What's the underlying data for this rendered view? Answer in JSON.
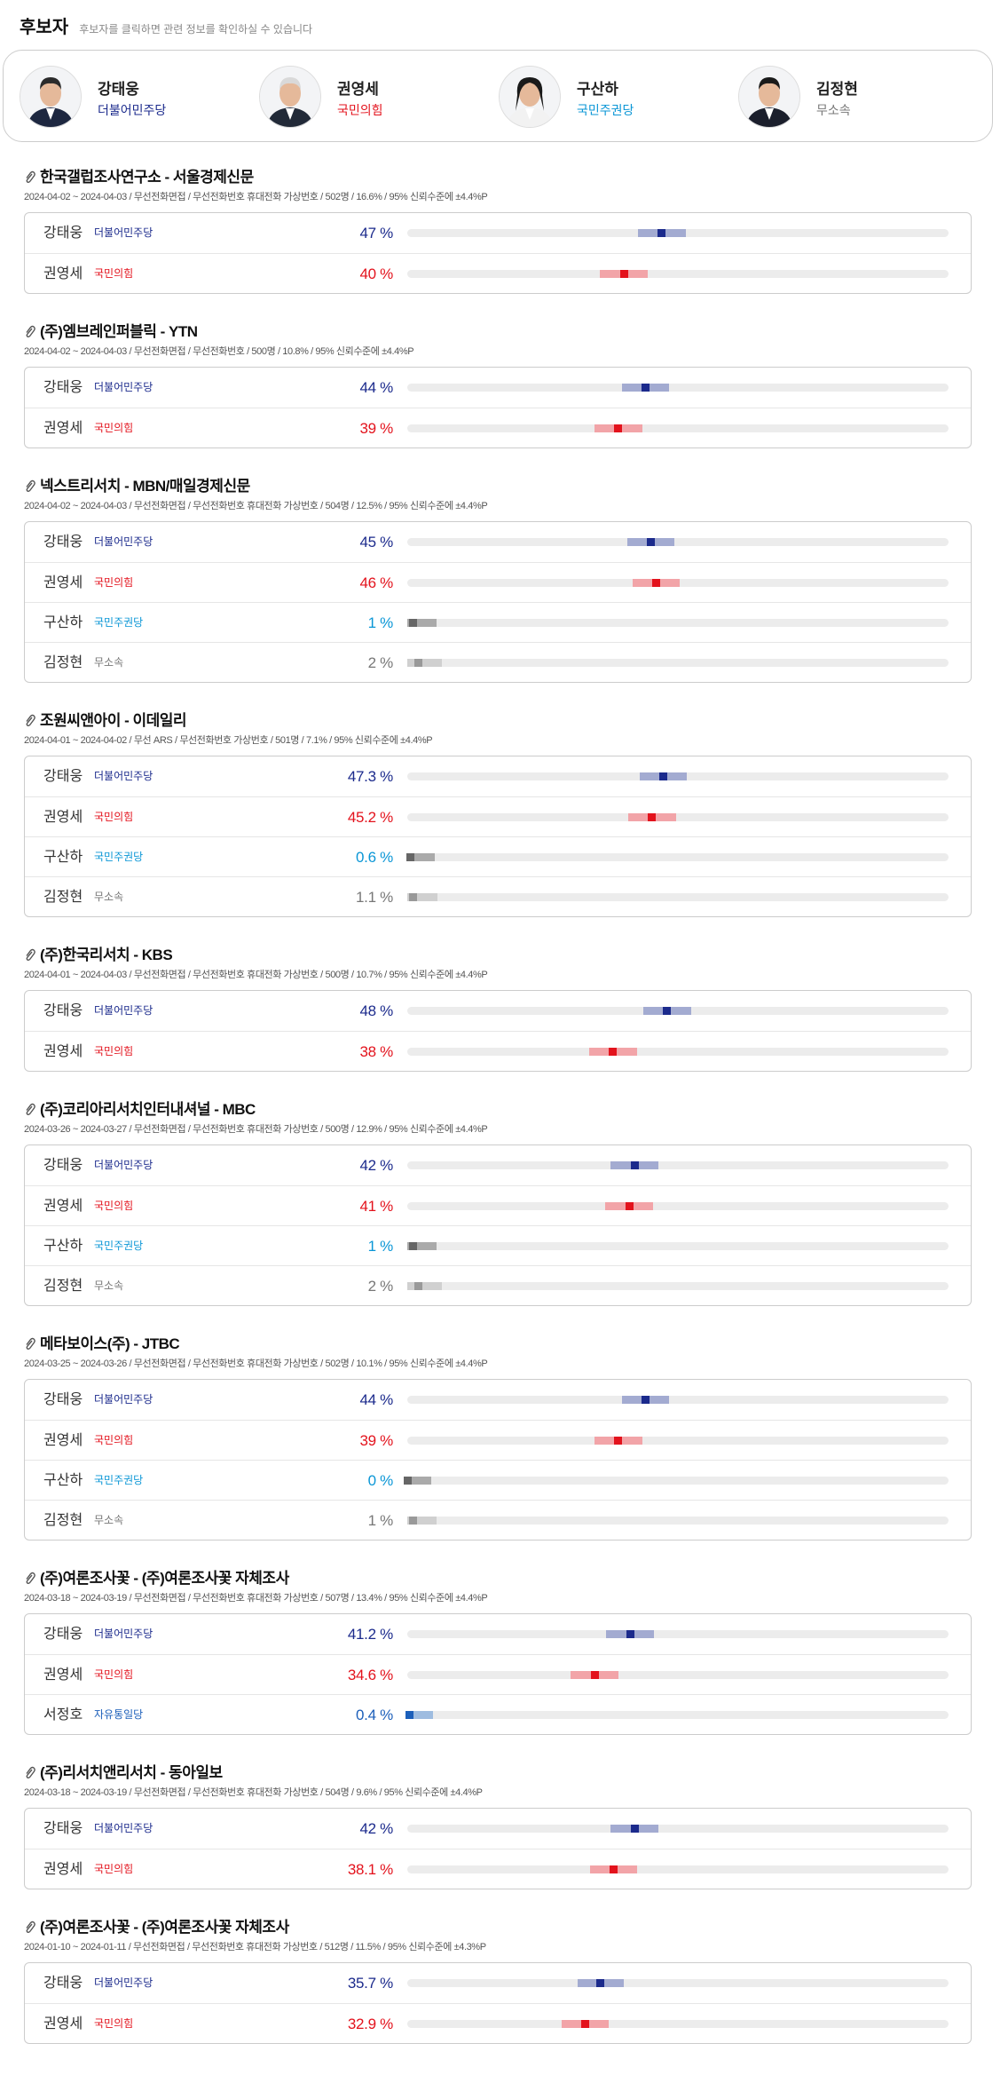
{
  "header": {
    "title": "후보자",
    "note": "후보자를 클릭하면 관련 정보를 확인하실 수 있습니다"
  },
  "candidates": [
    {
      "name": "강태웅",
      "party": "더불어민주당",
      "party_color": "#1b2a8c"
    },
    {
      "name": "권영세",
      "party": "국민의힘",
      "party_color": "#e3121c"
    },
    {
      "name": "구산하",
      "party": "국민주권당",
      "party_color": "#0a96d6"
    },
    {
      "name": "김정현",
      "party": "무소속",
      "party_color": "#777777"
    }
  ],
  "polls": [
    {
      "title": "한국갤럽조사연구소 - 서울경제신문",
      "meta": "2024-04-02 ~ 2024-04-03 / 무선전화면접 / 무선전화번호 휴대전화 가상번호 / 502명 / 16.6% / 95% 신뢰수준에 ±4.4%P",
      "margin": 4.4,
      "rows": [
        {
          "name": "강태웅",
          "party": "더불어민주당",
          "value": 47,
          "value_label": "47 %",
          "color": "#1b2a8c",
          "band_color": "#a3abd1",
          "party_color": "#1b2a8c"
        },
        {
          "name": "권영세",
          "party": "국민의힘",
          "value": 40,
          "value_label": "40 %",
          "color": "#e3121c",
          "band_color": "#f2a4a8",
          "party_color": "#e3121c"
        }
      ]
    },
    {
      "title": "(주)엠브레인퍼블릭 - YTN",
      "meta": "2024-04-02 ~ 2024-04-03 / 무선전화면접 / 무선전화번호 / 500명 / 10.8% / 95% 신뢰수준에 ±4.4%P",
      "margin": 4.4,
      "rows": [
        {
          "name": "강태웅",
          "party": "더불어민주당",
          "value": 44,
          "value_label": "44 %",
          "color": "#1b2a8c",
          "band_color": "#a3abd1",
          "party_color": "#1b2a8c"
        },
        {
          "name": "권영세",
          "party": "국민의힘",
          "value": 39,
          "value_label": "39 %",
          "color": "#e3121c",
          "band_color": "#f2a4a8",
          "party_color": "#e3121c"
        }
      ]
    },
    {
      "title": "넥스트리서치 - MBN/매일경제신문",
      "meta": "2024-04-02 ~ 2024-04-03 / 무선전화면접 / 무선전화번호 휴대전화 가상번호 / 504명 / 12.5% / 95% 신뢰수준에 ±4.4%P",
      "margin": 4.4,
      "rows": [
        {
          "name": "강태웅",
          "party": "더불어민주당",
          "value": 45,
          "value_label": "45 %",
          "color": "#1b2a8c",
          "band_color": "#a3abd1",
          "party_color": "#1b2a8c"
        },
        {
          "name": "권영세",
          "party": "국민의힘",
          "value": 46,
          "value_label": "46 %",
          "color": "#e3121c",
          "band_color": "#f2a4a8",
          "party_color": "#e3121c"
        },
        {
          "name": "구산하",
          "party": "국민주권당",
          "value": 1,
          "value_label": "1 %",
          "color": "#0a96d6",
          "band_color": "#aaaaaa",
          "party_color": "#0a96d6",
          "point_color": "#666666"
        },
        {
          "name": "김정현",
          "party": "무소속",
          "value": 2,
          "value_label": "2 %",
          "color": "#777777",
          "band_color": "#d0d0d0",
          "party_color": "#777777",
          "point_color": "#999999"
        }
      ]
    },
    {
      "title": "조원씨앤아이 - 이데일리",
      "meta": "2024-04-01 ~ 2024-04-02 / 무선 ARS / 무선전화번호 가상번호 / 501명 / 7.1% / 95% 신뢰수준에 ±4.4%P",
      "margin": 4.4,
      "rows": [
        {
          "name": "강태웅",
          "party": "더불어민주당",
          "value": 47.3,
          "value_label": "47.3 %",
          "color": "#1b2a8c",
          "band_color": "#a3abd1",
          "party_color": "#1b2a8c"
        },
        {
          "name": "권영세",
          "party": "국민의힘",
          "value": 45.2,
          "value_label": "45.2 %",
          "color": "#e3121c",
          "band_color": "#f2a4a8",
          "party_color": "#e3121c"
        },
        {
          "name": "구산하",
          "party": "국민주권당",
          "value": 0.6,
          "value_label": "0.6 %",
          "color": "#0a96d6",
          "band_color": "#aaaaaa",
          "party_color": "#0a96d6",
          "point_color": "#666666"
        },
        {
          "name": "김정현",
          "party": "무소속",
          "value": 1.1,
          "value_label": "1.1 %",
          "color": "#777777",
          "band_color": "#d0d0d0",
          "party_color": "#777777",
          "point_color": "#999999"
        }
      ]
    },
    {
      "title": "(주)한국리서치 - KBS",
      "meta": "2024-04-01 ~ 2024-04-03 / 무선전화면접 / 무선전화번호 휴대전화 가상번호 / 500명 / 10.7% / 95% 신뢰수준에 ±4.4%P",
      "margin": 4.4,
      "rows": [
        {
          "name": "강태웅",
          "party": "더불어민주당",
          "value": 48,
          "value_label": "48 %",
          "color": "#1b2a8c",
          "band_color": "#a3abd1",
          "party_color": "#1b2a8c"
        },
        {
          "name": "권영세",
          "party": "국민의힘",
          "value": 38,
          "value_label": "38 %",
          "color": "#e3121c",
          "band_color": "#f2a4a8",
          "party_color": "#e3121c"
        }
      ]
    },
    {
      "title": "(주)코리아리서치인터내셔널 - MBC",
      "meta": "2024-03-26 ~ 2024-03-27 / 무선전화면접 / 무선전화번호 휴대전화 가상번호 / 500명 / 12.9% / 95% 신뢰수준에 ±4.4%P",
      "margin": 4.4,
      "rows": [
        {
          "name": "강태웅",
          "party": "더불어민주당",
          "value": 42,
          "value_label": "42 %",
          "color": "#1b2a8c",
          "band_color": "#a3abd1",
          "party_color": "#1b2a8c"
        },
        {
          "name": "권영세",
          "party": "국민의힘",
          "value": 41,
          "value_label": "41 %",
          "color": "#e3121c",
          "band_color": "#f2a4a8",
          "party_color": "#e3121c"
        },
        {
          "name": "구산하",
          "party": "국민주권당",
          "value": 1,
          "value_label": "1 %",
          "color": "#0a96d6",
          "band_color": "#aaaaaa",
          "party_color": "#0a96d6",
          "point_color": "#666666"
        },
        {
          "name": "김정현",
          "party": "무소속",
          "value": 2,
          "value_label": "2 %",
          "color": "#777777",
          "band_color": "#d0d0d0",
          "party_color": "#777777",
          "point_color": "#999999"
        }
      ]
    },
    {
      "title": "메타보이스(주) - JTBC",
      "meta": "2024-03-25 ~ 2024-03-26 / 무선전화면접 / 무선전화번호 휴대전화 가상번호 / 502명 / 10.1% / 95% 신뢰수준에 ±4.4%P",
      "margin": 4.4,
      "rows": [
        {
          "name": "강태웅",
          "party": "더불어민주당",
          "value": 44,
          "value_label": "44 %",
          "color": "#1b2a8c",
          "band_color": "#a3abd1",
          "party_color": "#1b2a8c"
        },
        {
          "name": "권영세",
          "party": "국민의힘",
          "value": 39,
          "value_label": "39 %",
          "color": "#e3121c",
          "band_color": "#f2a4a8",
          "party_color": "#e3121c"
        },
        {
          "name": "구산하",
          "party": "국민주권당",
          "value": 0,
          "value_label": "0 %",
          "color": "#0a96d6",
          "band_color": "#aaaaaa",
          "party_color": "#0a96d6",
          "point_color": "#666666"
        },
        {
          "name": "김정현",
          "party": "무소속",
          "value": 1,
          "value_label": "1 %",
          "color": "#777777",
          "band_color": "#d0d0d0",
          "party_color": "#777777",
          "point_color": "#999999"
        }
      ]
    },
    {
      "title": "(주)여론조사꽃 - (주)여론조사꽃 자체조사",
      "meta": "2024-03-18 ~ 2024-03-19 / 무선전화면접 / 무선전화번호 휴대전화 가상번호 / 507명 / 13.4% / 95% 신뢰수준에 ±4.4%P",
      "margin": 4.4,
      "rows": [
        {
          "name": "강태웅",
          "party": "더불어민주당",
          "value": 41.2,
          "value_label": "41.2 %",
          "color": "#1b2a8c",
          "band_color": "#a3abd1",
          "party_color": "#1b2a8c"
        },
        {
          "name": "권영세",
          "party": "국민의힘",
          "value": 34.6,
          "value_label": "34.6 %",
          "color": "#e3121c",
          "band_color": "#f2a4a8",
          "party_color": "#e3121c"
        },
        {
          "name": "서정호",
          "party": "자유통일당",
          "value": 0.4,
          "value_label": "0.4 %",
          "color": "#1c5fba",
          "band_color": "#9ebce0",
          "party_color": "#1c5fba"
        }
      ]
    },
    {
      "title": "(주)리서치앤리서치 - 동아일보",
      "meta": "2024-03-18 ~ 2024-03-19 / 무선전화면접 / 무선전화번호 휴대전화 가상번호 / 504명 / 9.6% / 95% 신뢰수준에 ±4.4%P",
      "margin": 4.4,
      "rows": [
        {
          "name": "강태웅",
          "party": "더불어민주당",
          "value": 42,
          "value_label": "42 %",
          "color": "#1b2a8c",
          "band_color": "#a3abd1",
          "party_color": "#1b2a8c"
        },
        {
          "name": "권영세",
          "party": "국민의힘",
          "value": 38.1,
          "value_label": "38.1 %",
          "color": "#e3121c",
          "band_color": "#f2a4a8",
          "party_color": "#e3121c"
        }
      ]
    },
    {
      "title": "(주)여론조사꽃 - (주)여론조사꽃 자체조사",
      "meta": "2024-01-10 ~ 2024-01-11 / 무선전화면접 / 무선전화번호 휴대전화 가상번호 / 512명 / 11.5% / 95% 신뢰수준에 ±4.3%P",
      "margin": 4.3,
      "rows": [
        {
          "name": "강태웅",
          "party": "더불어민주당",
          "value": 35.7,
          "value_label": "35.7 %",
          "color": "#1b2a8c",
          "band_color": "#a3abd1",
          "party_color": "#1b2a8c"
        },
        {
          "name": "권영세",
          "party": "국민의힘",
          "value": 32.9,
          "value_label": "32.9 %",
          "color": "#e3121c",
          "band_color": "#f2a4a8",
          "party_color": "#e3121c"
        }
      ]
    }
  ]
}
